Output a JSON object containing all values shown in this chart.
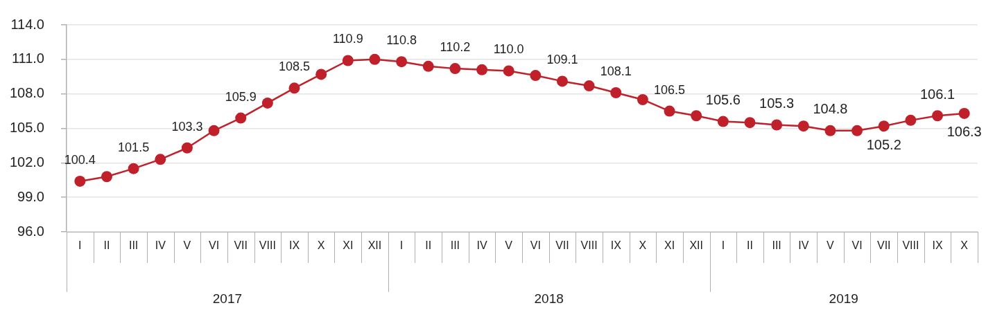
{
  "chart_data": {
    "type": "line",
    "categories": [
      "I",
      "II",
      "III",
      "IV",
      "V",
      "VI",
      "VII",
      "VIII",
      "IX",
      "X",
      "XI",
      "XII",
      "I",
      "II",
      "III",
      "IV",
      "V",
      "VI",
      "VII",
      "VIII",
      "IX",
      "X",
      "XI",
      "XII",
      "I",
      "II",
      "III",
      "IV",
      "V",
      "VI",
      "VII",
      "VIII",
      "IX",
      "X"
    ],
    "values": [
      100.4,
      100.8,
      101.5,
      102.3,
      103.3,
      104.8,
      105.9,
      107.2,
      108.5,
      109.7,
      110.9,
      111.0,
      110.8,
      110.4,
      110.2,
      110.1,
      110.0,
      109.6,
      109.1,
      108.7,
      108.1,
      107.5,
      106.5,
      106.1,
      105.6,
      105.5,
      105.3,
      105.2,
      104.8,
      104.8,
      105.2,
      105.7,
      106.1,
      106.3
    ],
    "value_labels": [
      "100.4",
      null,
      "101.5",
      null,
      "103.3",
      null,
      "105.9",
      null,
      "108.5",
      null,
      "110.9",
      null,
      "110.8",
      null,
      "110.2",
      null,
      "110.0",
      null,
      "109.1",
      null,
      "108.1",
      null,
      "106.5",
      null,
      "105.6",
      null,
      "105.3",
      null,
      "104.8",
      null,
      "105.2",
      null,
      "106.1",
      "106.3"
    ],
    "color": "#c0202a",
    "marker": "circle",
    "grid": "y",
    "ylim": [
      96,
      114
    ],
    "yticks": [
      {
        "value": 96,
        "label": "96.0"
      },
      {
        "value": 99,
        "label": "99.0"
      },
      {
        "value": 102,
        "label": "102.0"
      },
      {
        "value": 105,
        "label": "105.0"
      },
      {
        "value": 108,
        "label": "108.0"
      },
      {
        "value": 111,
        "label": "111.0"
      },
      {
        "value": 114,
        "label": "114.0"
      }
    ],
    "annotations": [
      "2017",
      "2018",
      "2019"
    ]
  }
}
